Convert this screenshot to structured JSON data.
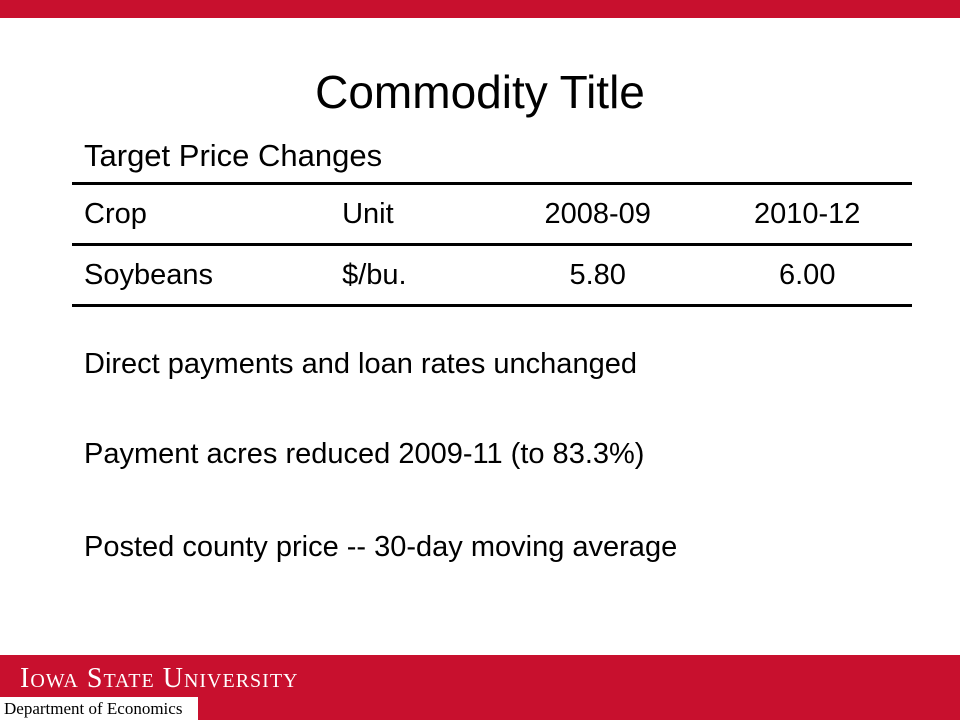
{
  "slide": {
    "title": "Commodity Title",
    "table_caption": "Target Price Changes",
    "table": {
      "headers": [
        "Crop",
        "Unit",
        "2008-09",
        "2010-12"
      ],
      "rows": [
        [
          "Soybeans",
          "$/bu.",
          "5.80",
          "6.00"
        ]
      ]
    },
    "bullets": [
      "Direct payments and loan rates unchanged",
      "Payment acres reduced 2009-11 (to 83.3%)",
      "Posted county price -- 30-day moving average"
    ]
  },
  "footer": {
    "university": "Iowa State University",
    "department": "Department of Economics"
  },
  "colors": {
    "brand_red": "#c8102e",
    "text": "#000000",
    "background": "#ffffff"
  }
}
